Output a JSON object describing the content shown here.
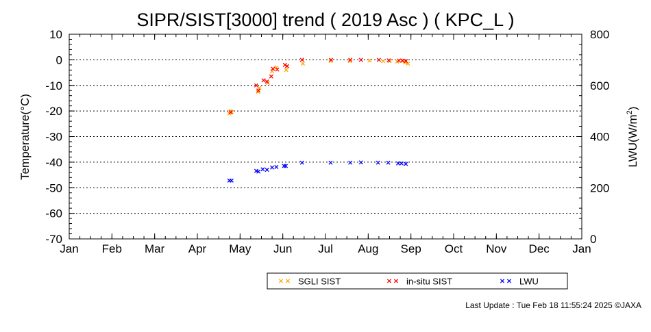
{
  "chart_data": {
    "type": "scatter",
    "title": "SIPR/SIST[3000] trend ( 2019 Asc ) ( KPC_L )",
    "ylabel": "Temperature(°C)",
    "y2label": {
      "base": "LWU(W/m",
      "sup": "2",
      "close": ")"
    },
    "ylim": [
      -70,
      10
    ],
    "y2lim": [
      0,
      800
    ],
    "yticks": [
      "10",
      "0",
      "-10",
      "-20",
      "-30",
      "-40",
      "-50",
      "-60",
      "-70"
    ],
    "y2ticks": [
      "800",
      "600",
      "400",
      "200",
      "0"
    ],
    "xticks": [
      "Jan",
      "Feb",
      "Mar",
      "Apr",
      "May",
      "Jun",
      "Jul",
      "Aug",
      "Sep",
      "Oct",
      "Nov",
      "Dec",
      "Jan"
    ],
    "xlim_month": [
      0,
      12
    ],
    "grid": true,
    "legend_position": "bottom",
    "series": [
      {
        "name": "SGLI SIST",
        "axis": "left",
        "color": "#ffa500",
        "points": [
          {
            "month": 3.75,
            "y": -21
          },
          {
            "month": 3.78,
            "y": -20
          },
          {
            "month": 3.8,
            "y": -20.5
          },
          {
            "month": 4.42,
            "y": -12.5
          },
          {
            "month": 4.45,
            "y": -11
          },
          {
            "month": 4.65,
            "y": -9
          },
          {
            "month": 4.75,
            "y": -4.5
          },
          {
            "month": 4.85,
            "y": -3
          },
          {
            "month": 5.08,
            "y": -4
          },
          {
            "month": 5.1,
            "y": -2.5
          },
          {
            "month": 5.47,
            "y": -1.5
          },
          {
            "month": 6.12,
            "y": -0.5
          },
          {
            "month": 6.57,
            "y": -0.5
          },
          {
            "month": 7.03,
            "y": -0.3
          },
          {
            "month": 7.35,
            "y": -0.5
          },
          {
            "month": 7.5,
            "y": -0.5
          },
          {
            "month": 7.68,
            "y": -0.7
          },
          {
            "month": 7.8,
            "y": -0.5
          },
          {
            "month": 7.87,
            "y": -1
          },
          {
            "month": 7.93,
            "y": -1.5
          }
        ]
      },
      {
        "name": "in-situ SIST",
        "axis": "left",
        "color": "#ff0000",
        "points": [
          {
            "month": 3.78,
            "y": -20.5
          },
          {
            "month": 4.38,
            "y": -10
          },
          {
            "month": 4.43,
            "y": -12
          },
          {
            "month": 4.55,
            "y": -8
          },
          {
            "month": 4.63,
            "y": -8.5
          },
          {
            "month": 4.73,
            "y": -6.5
          },
          {
            "month": 4.77,
            "y": -3.5
          },
          {
            "month": 4.87,
            "y": -3.8
          },
          {
            "month": 5.05,
            "y": -2
          },
          {
            "month": 5.1,
            "y": -2.5
          },
          {
            "month": 5.45,
            "y": 0
          },
          {
            "month": 6.13,
            "y": 0
          },
          {
            "month": 6.58,
            "y": 0
          },
          {
            "month": 6.83,
            "y": 0
          },
          {
            "month": 7.25,
            "y": 0
          },
          {
            "month": 7.48,
            "y": -0.2
          },
          {
            "month": 7.72,
            "y": -0.3
          },
          {
            "month": 7.8,
            "y": -0.3
          },
          {
            "month": 7.88,
            "y": -0.5
          }
        ]
      },
      {
        "name": "LWU",
        "axis": "right",
        "color": "#0000ff",
        "points": [
          {
            "month": 3.75,
            "y": 228
          },
          {
            "month": 3.8,
            "y": 228
          },
          {
            "month": 4.38,
            "y": 266
          },
          {
            "month": 4.43,
            "y": 263
          },
          {
            "month": 4.53,
            "y": 272
          },
          {
            "month": 4.63,
            "y": 270
          },
          {
            "month": 4.75,
            "y": 279
          },
          {
            "month": 4.85,
            "y": 281
          },
          {
            "month": 5.03,
            "y": 285
          },
          {
            "month": 5.07,
            "y": 285
          },
          {
            "month": 5.45,
            "y": 298
          },
          {
            "month": 6.12,
            "y": 298
          },
          {
            "month": 6.58,
            "y": 298
          },
          {
            "month": 6.83,
            "y": 299
          },
          {
            "month": 7.23,
            "y": 298
          },
          {
            "month": 7.47,
            "y": 298
          },
          {
            "month": 7.7,
            "y": 295
          },
          {
            "month": 7.78,
            "y": 295
          },
          {
            "month": 7.88,
            "y": 293
          }
        ]
      }
    ]
  },
  "footer": {
    "update_text": "Last Update : Tue Feb 18 11:55:24 2025  ©JAXA"
  }
}
